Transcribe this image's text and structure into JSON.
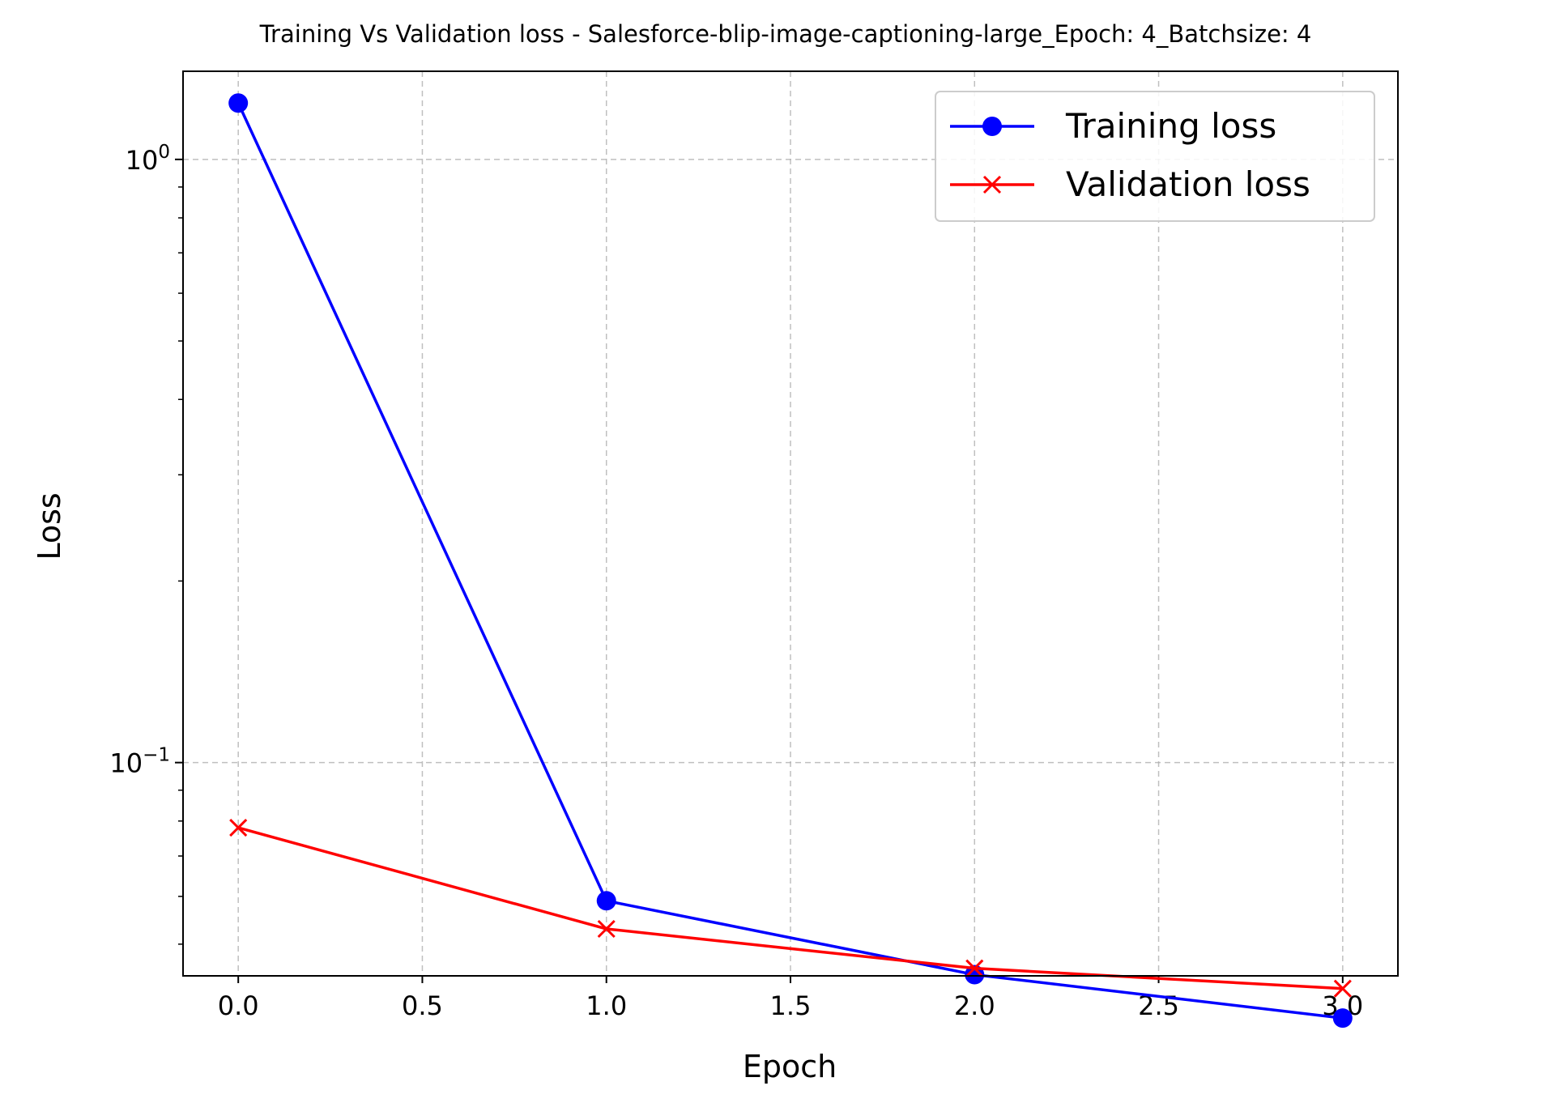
{
  "chart_data": {
    "type": "line",
    "title": "Training Vs Validation loss - Salesforce-blip-image-captioning-large_Epoch: 4_Batchsize: 4",
    "xlabel": "Epoch",
    "ylabel": "Loss",
    "xlim": [
      -0.15,
      3.15
    ],
    "ylim": [
      0.0443,
      1.4
    ],
    "yscale": "log",
    "grid": true,
    "legend_position": "top-right",
    "x_ticks": [
      "0.0",
      "0.5",
      "1.0",
      "1.5",
      "2.0",
      "2.5",
      "3.0"
    ],
    "y_major_ticks": [
      {
        "value": 1.0,
        "base": "10",
        "exp": "0"
      },
      {
        "value": 0.1,
        "base": "10",
        "exp": "−1"
      }
    ],
    "x": [
      0.0,
      1.0,
      2.0,
      3.0
    ],
    "series": [
      {
        "name": "Training loss",
        "color": "#0000ff",
        "marker": "circle",
        "values": [
          1.24,
          0.059,
          0.0445,
          0.0377
        ]
      },
      {
        "name": "Validation loss",
        "color": "#ff0000",
        "marker": "x",
        "values": [
          0.078,
          0.053,
          0.0456,
          0.0422
        ]
      }
    ]
  }
}
